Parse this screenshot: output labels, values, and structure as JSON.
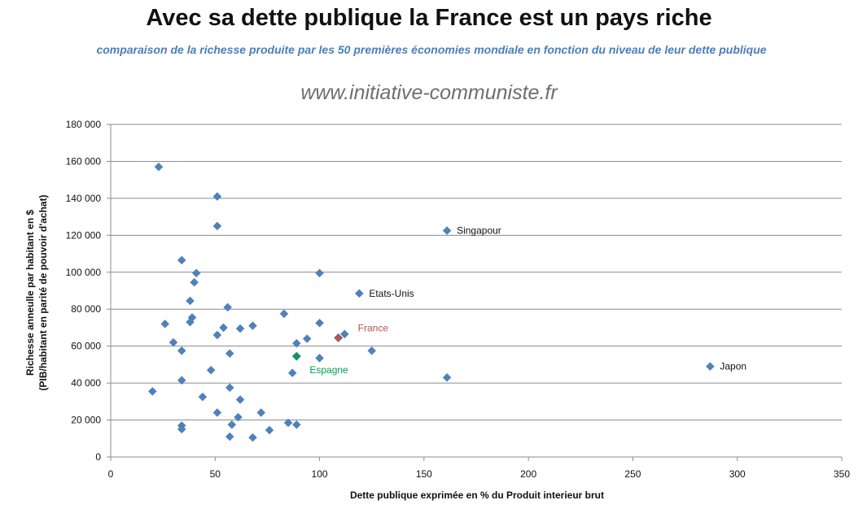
{
  "chart_data": {
    "type": "scatter",
    "title": "Avec sa dette publique la France est un pays riche",
    "subtitle": "comparaison de la richesse produite par les 50 premières économies mondiale en fonction du niveau de leur dette publique",
    "source": "www.initiative-communiste.fr",
    "xlabel": "Dette publique exprimée en % du Produit interieur brut",
    "ylabel_lines": [
      "Richesse anneulle par habitant en $",
      "(PIB/habitant en parité de pouvoir d'achat)"
    ],
    "xlim": [
      0,
      350
    ],
    "ylim": [
      0,
      180000
    ],
    "x_ticks": [
      "0",
      "50",
      "100",
      "150",
      "200",
      "250",
      "300",
      "350"
    ],
    "y_ticks": [
      "0",
      "20 000",
      "40 000",
      "60 000",
      "80 000",
      "100 000",
      "120 000",
      "140 000",
      "160 000",
      "180 000"
    ],
    "grid": "horizontal",
    "colors": {
      "default": "#4f81bd",
      "France": "#c0504d",
      "Espagne": "#00a050"
    },
    "points": [
      {
        "x": 23,
        "y": 157000
      },
      {
        "x": 51,
        "y": 141000
      },
      {
        "x": 51,
        "y": 125000
      },
      {
        "x": 34,
        "y": 106500
      },
      {
        "x": 41,
        "y": 99500
      },
      {
        "x": 40,
        "y": 94500
      },
      {
        "x": 38,
        "y": 84500
      },
      {
        "x": 39,
        "y": 75500
      },
      {
        "x": 38,
        "y": 73000
      },
      {
        "x": 26,
        "y": 72000
      },
      {
        "x": 56,
        "y": 81000
      },
      {
        "x": 54,
        "y": 70000
      },
      {
        "x": 51,
        "y": 66000
      },
      {
        "x": 62,
        "y": 69500
      },
      {
        "x": 68,
        "y": 71000
      },
      {
        "x": 30,
        "y": 62000
      },
      {
        "x": 34,
        "y": 57500
      },
      {
        "x": 57,
        "y": 56000
      },
      {
        "x": 48,
        "y": 47000
      },
      {
        "x": 34,
        "y": 41500
      },
      {
        "x": 57,
        "y": 37500
      },
      {
        "x": 20,
        "y": 35500
      },
      {
        "x": 44,
        "y": 32500
      },
      {
        "x": 62,
        "y": 31000
      },
      {
        "x": 51,
        "y": 24000
      },
      {
        "x": 72,
        "y": 24000
      },
      {
        "x": 61,
        "y": 21500
      },
      {
        "x": 58,
        "y": 17500
      },
      {
        "x": 34,
        "y": 17000
      },
      {
        "x": 34,
        "y": 15000
      },
      {
        "x": 76,
        "y": 14500
      },
      {
        "x": 57,
        "y": 11000
      },
      {
        "x": 68,
        "y": 10500
      },
      {
        "x": 85,
        "y": 18500
      },
      {
        "x": 89,
        "y": 17500
      },
      {
        "x": 83,
        "y": 77500
      },
      {
        "x": 100,
        "y": 99500
      },
      {
        "x": 100,
        "y": 72500
      },
      {
        "x": 94,
        "y": 64000
      },
      {
        "x": 89,
        "y": 61500
      },
      {
        "x": 100,
        "y": 53500
      },
      {
        "x": 87,
        "y": 45500
      },
      {
        "x": 112,
        "y": 66500
      },
      {
        "x": 125,
        "y": 57500
      },
      {
        "x": 161,
        "y": 43000
      },
      {
        "x": 119,
        "y": 88500,
        "label": "Etats-Unis"
      },
      {
        "x": 161,
        "y": 122500,
        "label": "Singapour"
      },
      {
        "x": 287,
        "y": 49000,
        "label": "Japon"
      },
      {
        "x": 109,
        "y": 64500,
        "label": "France",
        "highlight": "France"
      },
      {
        "x": 89,
        "y": 54500,
        "label": "Espagne",
        "highlight": "Espagne"
      }
    ]
  }
}
